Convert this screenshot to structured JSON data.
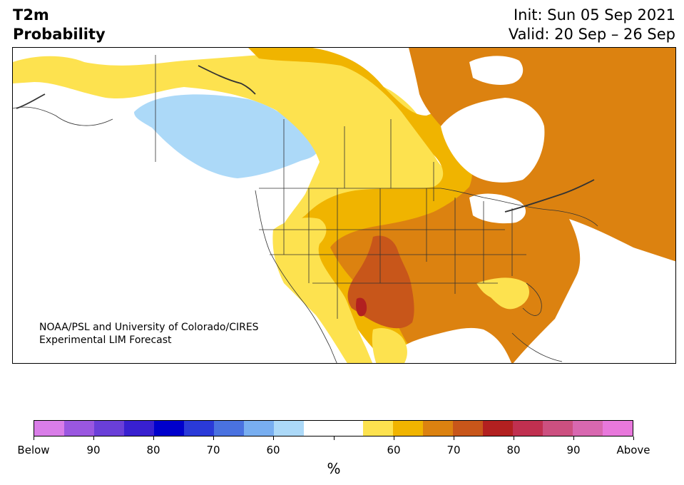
{
  "header": {
    "variable": "T2m",
    "subtitle": "Probability",
    "init": "Init: Sun 05 Sep 2021",
    "valid": "Valid: 20 Sep – 26 Sep"
  },
  "map": {
    "credit_line1": "NOAA/PSL and University of Colorado/CIRES",
    "credit_line2": "Experimental LIM Forecast",
    "palette": {
      "above_60": "#fde24f",
      "above_65": "#f0b400",
      "above_70": "#dc8210",
      "above_75": "#c8561a",
      "above_80": "#b22020",
      "below_60": "#acd9f8",
      "land_lines": "#333333"
    }
  },
  "colorbar": {
    "colors": [
      "#d97de8",
      "#9a57e0",
      "#6a3fd8",
      "#3820d0",
      "#0000cc",
      "#2a3ad8",
      "#4a72e0",
      "#78aef0",
      "#acd9f8",
      "#ffffff",
      "#ffffff",
      "#fde24f",
      "#f0b400",
      "#dc8210",
      "#c8561a",
      "#b22020",
      "#c03050",
      "#cc5080",
      "#d868b0",
      "#e878dc"
    ],
    "labels": [
      "Below",
      "90",
      "80",
      "70",
      "60",
      "",
      "60",
      "70",
      "80",
      "90",
      "Above"
    ],
    "unit": "%"
  }
}
